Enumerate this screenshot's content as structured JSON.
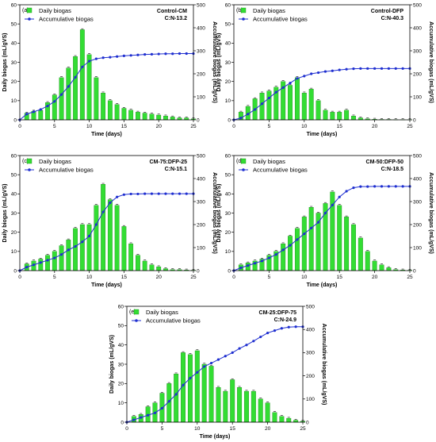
{
  "colors": {
    "bar": "#33dd33",
    "bar_edge": "#1a8c1a",
    "line": "#1f2fd0",
    "axis": "#000000"
  },
  "chart_data": [
    {
      "type": "bar",
      "panel_label": "(a)",
      "note_line1": "Control-CM",
      "note_line2": "C:N-13.2",
      "legend": [
        "Daily biogas",
        "Accumulative biogas"
      ],
      "xlabel": "Time (days)",
      "ylabel_left": "Daily biogas (mL/gVS)",
      "ylabel_right": "Accumulative biogas (mL/gVS)",
      "xlim": [
        0,
        25
      ],
      "ylim_left": [
        0,
        60
      ],
      "ylim_right": [
        0,
        500
      ],
      "xticks": [
        0,
        5,
        10,
        15,
        20,
        25
      ],
      "yticks_left": [
        0,
        10,
        20,
        30,
        40,
        50,
        60
      ],
      "yticks_right": [
        0,
        100,
        200,
        300,
        400,
        500
      ],
      "series": [
        {
          "axis": "left",
          "type": "bar",
          "x": [
            1,
            2,
            3,
            4,
            5,
            6,
            7,
            8,
            9,
            10,
            11,
            12,
            13,
            14,
            15,
            16,
            17,
            18,
            19,
            20,
            21,
            22,
            23,
            24,
            25
          ],
          "values": [
            3.5,
            4.5,
            5,
            9,
            13,
            22,
            27,
            33,
            47,
            34,
            22,
            14,
            10,
            8,
            6,
            5,
            4,
            3.5,
            3,
            2.5,
            2,
            1.5,
            1,
            1,
            0.5
          ]
        },
        {
          "axis": "right",
          "type": "line",
          "x": [
            0,
            1,
            2,
            3,
            4,
            5,
            6,
            7,
            8,
            9,
            10,
            11,
            12,
            13,
            14,
            15,
            16,
            17,
            18,
            19,
            20,
            21,
            22,
            23,
            24,
            25
          ],
          "values": [
            0,
            25,
            35,
            45,
            60,
            80,
            110,
            145,
            185,
            230,
            255,
            265,
            270,
            272,
            275,
            278,
            280,
            282,
            284,
            285,
            286,
            287,
            287,
            288,
            288,
            288
          ]
        }
      ]
    },
    {
      "type": "bar",
      "panel_label": "(b)",
      "note_line1": "Control-DFP",
      "note_line2": "C:N-40.3",
      "legend": [
        "Daily biogas",
        "Accumulative biogas"
      ],
      "xlabel": "Time (days)",
      "ylabel_left": "Daily biogas (mL/gVS)",
      "ylabel_right": "Accumulative biogas (mL/gVS)",
      "xlim": [
        0,
        25
      ],
      "ylim_left": [
        0,
        60
      ],
      "ylim_right": [
        0,
        500
      ],
      "xticks": [
        0,
        5,
        10,
        15,
        20,
        25
      ],
      "yticks_left": [
        0,
        10,
        20,
        30,
        40,
        50,
        60
      ],
      "yticks_right": [
        0,
        100,
        200,
        300,
        400,
        500
      ],
      "series": [
        {
          "axis": "left",
          "type": "bar",
          "x": [
            1,
            2,
            3,
            4,
            5,
            6,
            7,
            8,
            9,
            10,
            11,
            12,
            13,
            14,
            15,
            16,
            17,
            18,
            19,
            20,
            21,
            22,
            23,
            24,
            25
          ],
          "values": [
            4,
            7,
            11,
            14,
            15,
            17,
            20,
            18,
            22,
            14,
            16,
            10,
            5,
            4,
            4,
            5,
            2,
            1,
            0.5,
            0.3,
            0.2,
            0.2,
            0.1,
            0.1,
            0.1
          ]
        },
        {
          "axis": "right",
          "type": "line",
          "x": [
            0,
            1,
            2,
            3,
            4,
            5,
            6,
            7,
            8,
            9,
            10,
            11,
            12,
            13,
            14,
            15,
            16,
            17,
            18,
            19,
            20,
            21,
            22,
            23,
            24,
            25
          ],
          "values": [
            0,
            8,
            25,
            45,
            70,
            95,
            120,
            140,
            160,
            180,
            190,
            200,
            205,
            210,
            213,
            217,
            220,
            222,
            223,
            223,
            223,
            223,
            223,
            223,
            223,
            223
          ]
        }
      ]
    },
    {
      "type": "bar",
      "panel_label": "(c)",
      "note_line1": "CM-75:DFP-25",
      "note_line2": "C:N-15.1",
      "legend": [
        "Daily biogas",
        "Accumulative biogas"
      ],
      "xlabel": "Time (days)",
      "ylabel_left": "Daily biogas (mL/gVS)",
      "ylabel_right": "Accumulative biogas (mL/gVS)",
      "xlim": [
        0,
        25
      ],
      "ylim_left": [
        0,
        60
      ],
      "ylim_right": [
        0,
        500
      ],
      "xticks": [
        0,
        5,
        10,
        15,
        20,
        25
      ],
      "yticks_left": [
        0,
        10,
        20,
        30,
        40,
        50,
        60
      ],
      "yticks_right": [
        0,
        100,
        200,
        300,
        400,
        500
      ],
      "series": [
        {
          "axis": "left",
          "type": "bar",
          "x": [
            1,
            2,
            3,
            4,
            5,
            6,
            7,
            8,
            9,
            10,
            11,
            12,
            13,
            14,
            15,
            16,
            17,
            18,
            19,
            20,
            21,
            22,
            23,
            24,
            25
          ],
          "values": [
            3.5,
            5,
            6,
            8,
            10,
            13,
            16,
            22,
            24,
            24,
            34,
            45,
            37,
            34,
            23,
            14,
            8,
            5,
            3,
            2,
            1,
            0.5,
            0.5,
            0.3,
            0.2
          ]
        },
        {
          "axis": "right",
          "type": "line",
          "x": [
            0,
            1,
            2,
            3,
            4,
            5,
            6,
            7,
            8,
            9,
            10,
            11,
            12,
            13,
            14,
            15,
            16,
            17,
            18,
            19,
            20,
            21,
            22,
            23,
            24,
            25
          ],
          "values": [
            0,
            15,
            25,
            35,
            45,
            55,
            70,
            90,
            105,
            125,
            150,
            200,
            255,
            295,
            320,
            330,
            333,
            333,
            334,
            334,
            334,
            334,
            334,
            334,
            334,
            334
          ]
        }
      ]
    },
    {
      "type": "bar",
      "panel_label": "(d)",
      "note_line1": "CM-50:DFP-50",
      "note_line2": "C:N-18.5",
      "legend": [
        "Daily biogas",
        "Accumulative biogas"
      ],
      "xlabel": "Time (days)",
      "ylabel_left": "Daily biogas (mL/gVS)",
      "ylabel_right": "Accumulative biogas (mL/gVS)",
      "xlim": [
        0,
        25
      ],
      "ylim_left": [
        0,
        60
      ],
      "ylim_right": [
        0,
        500
      ],
      "xticks": [
        0,
        5,
        10,
        15,
        20,
        25
      ],
      "yticks_left": [
        0,
        10,
        20,
        30,
        40,
        50,
        60
      ],
      "yticks_right": [
        0,
        100,
        200,
        300,
        400,
        500
      ],
      "series": [
        {
          "axis": "left",
          "type": "bar",
          "x": [
            1,
            2,
            3,
            4,
            5,
            6,
            7,
            8,
            9,
            10,
            11,
            12,
            13,
            14,
            15,
            16,
            17,
            18,
            19,
            20,
            21,
            22,
            23,
            24,
            25
          ],
          "values": [
            3,
            4,
            5,
            6,
            8,
            10,
            14,
            18,
            22,
            28,
            33,
            30,
            35,
            41,
            34,
            28,
            24,
            17,
            10,
            5,
            3,
            1.5,
            0.5,
            0.3,
            0.2
          ]
        },
        {
          "axis": "right",
          "type": "line",
          "x": [
            0,
            1,
            2,
            3,
            4,
            5,
            6,
            7,
            8,
            9,
            10,
            11,
            12,
            13,
            14,
            15,
            16,
            17,
            18,
            19,
            20,
            21,
            22,
            23,
            24,
            25
          ],
          "values": [
            0,
            12,
            22,
            32,
            42,
            55,
            70,
            90,
            110,
            135,
            160,
            185,
            210,
            250,
            285,
            320,
            345,
            360,
            365,
            365,
            366,
            366,
            366,
            366,
            366,
            366
          ]
        }
      ]
    },
    {
      "type": "bar",
      "panel_label": "(e)",
      "note_line1": "CM-25:DFP-75",
      "note_line2": "C:N-24.9",
      "legend": [
        "Daily biogas",
        "Accumulative biogas"
      ],
      "xlabel": "Time (days)",
      "ylabel_left": "Daily biogas (mL/gVS)",
      "ylabel_right": "Accumulative biogas (mL/gVS)",
      "xlim": [
        0,
        25
      ],
      "ylim_left": [
        0,
        60
      ],
      "ylim_right": [
        0,
        500
      ],
      "xticks": [
        0,
        5,
        10,
        15,
        20,
        25
      ],
      "yticks_left": [
        0,
        10,
        20,
        30,
        40,
        50,
        60
      ],
      "yticks_right": [
        0,
        100,
        200,
        300,
        400,
        500
      ],
      "series": [
        {
          "axis": "left",
          "type": "bar",
          "x": [
            1,
            2,
            3,
            4,
            5,
            6,
            7,
            8,
            9,
            10,
            11,
            12,
            13,
            14,
            15,
            16,
            17,
            18,
            19,
            20,
            21,
            22,
            23,
            24,
            25
          ],
          "values": [
            3,
            4,
            8,
            10,
            15,
            20,
            25,
            36,
            35,
            37,
            30,
            29,
            18,
            16,
            22,
            18,
            16,
            16,
            12,
            10,
            5,
            3,
            2,
            1,
            0.5
          ]
        },
        {
          "axis": "right",
          "type": "line",
          "x": [
            0,
            1,
            2,
            3,
            4,
            5,
            6,
            7,
            8,
            9,
            10,
            11,
            12,
            13,
            14,
            15,
            16,
            17,
            18,
            19,
            20,
            21,
            22,
            23,
            24,
            25
          ],
          "values": [
            0,
            10,
            20,
            30,
            40,
            60,
            90,
            120,
            160,
            190,
            215,
            240,
            255,
            270,
            285,
            300,
            318,
            333,
            350,
            368,
            385,
            395,
            405,
            410,
            412,
            412
          ]
        }
      ]
    }
  ]
}
